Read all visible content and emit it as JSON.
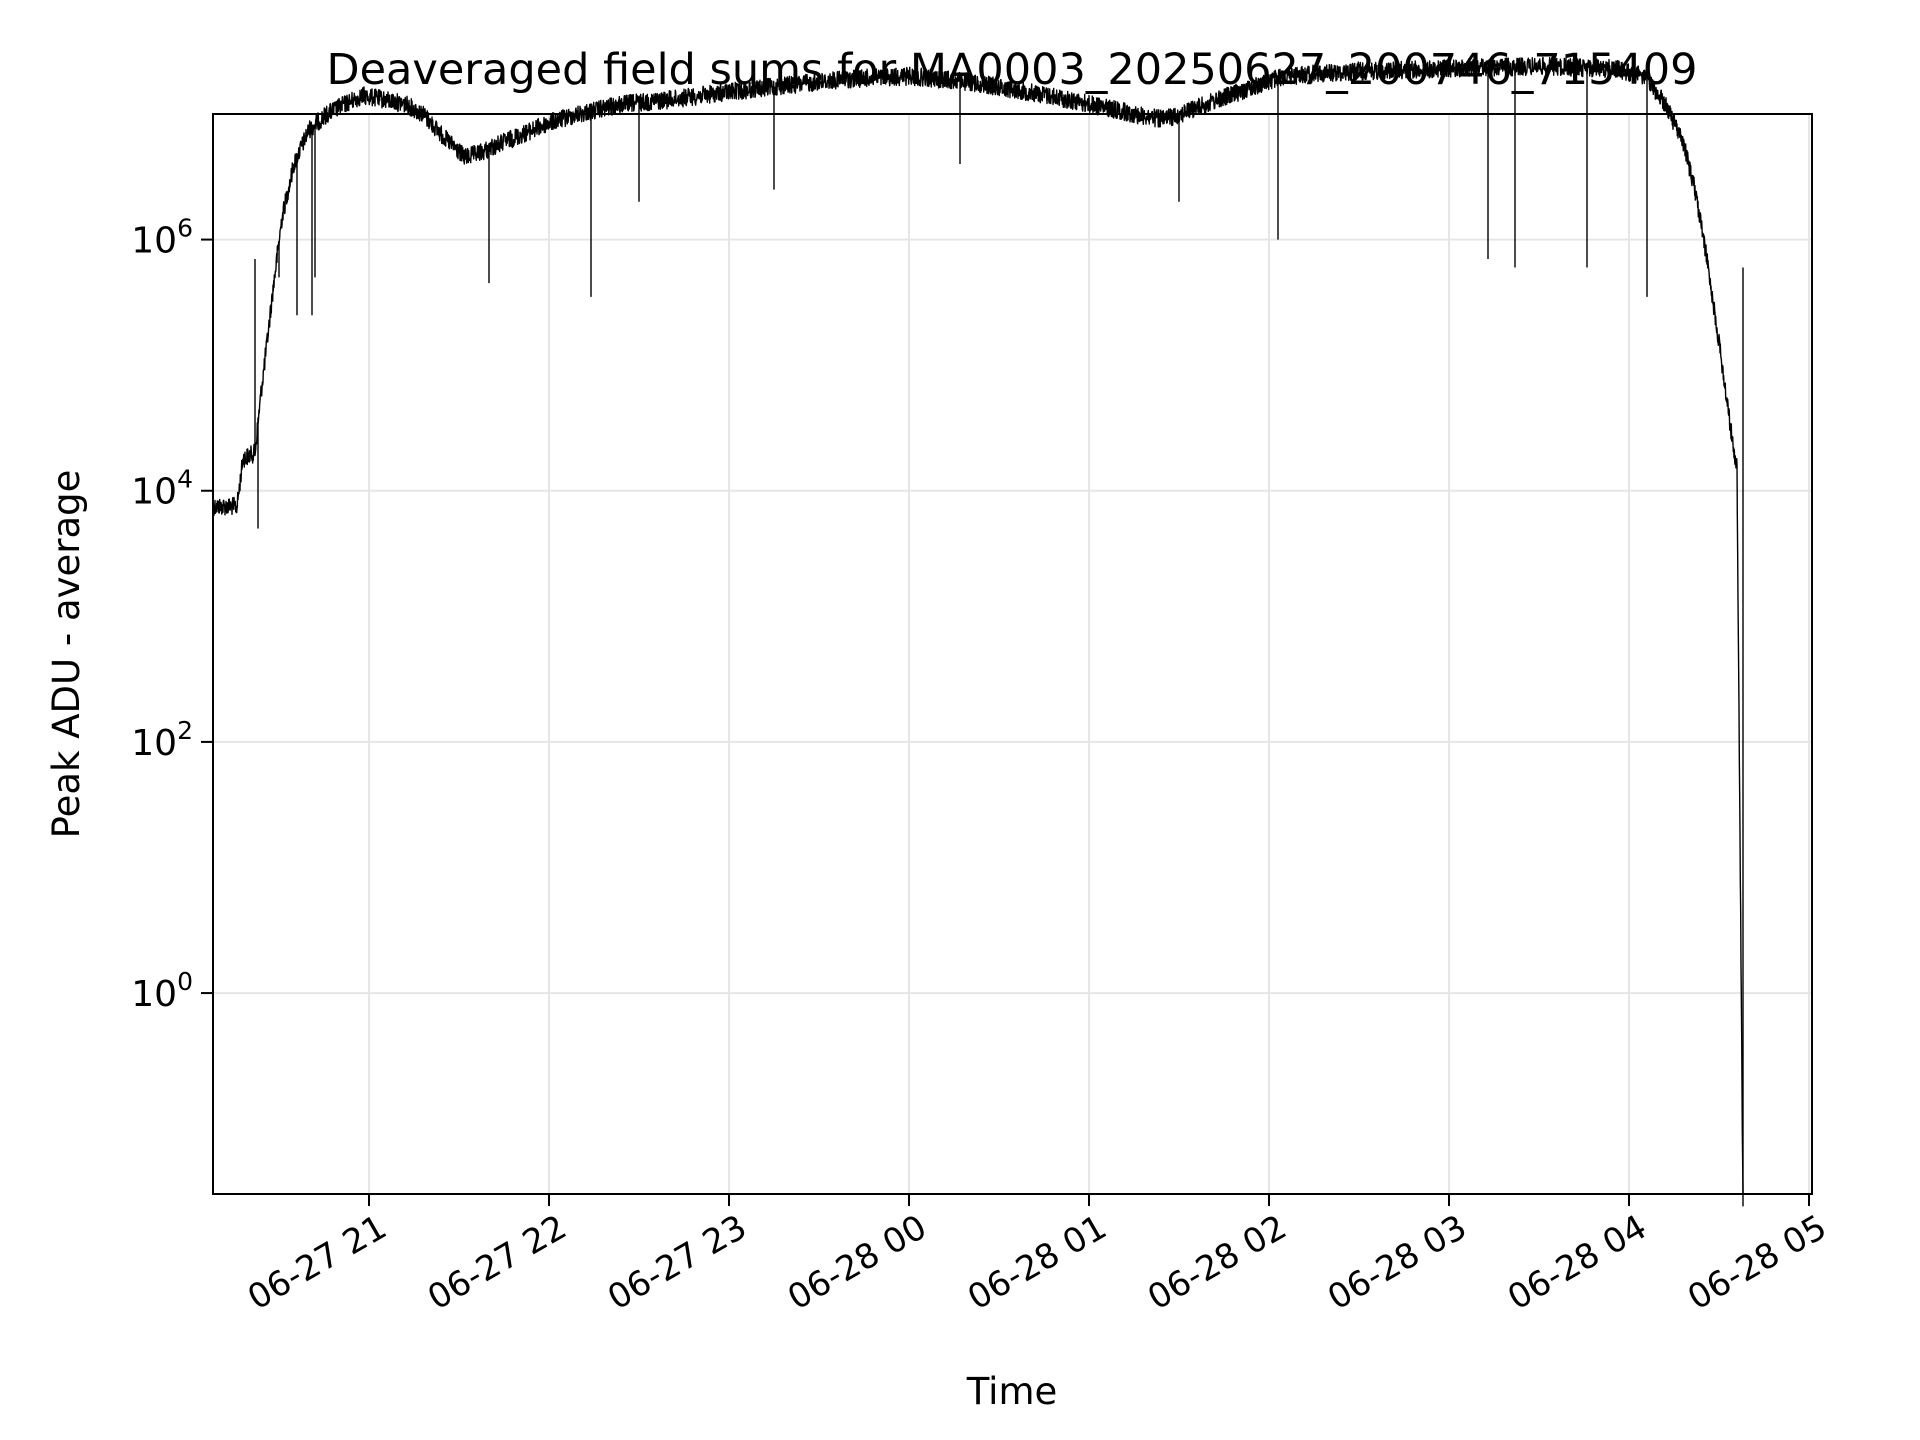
{
  "chart_data": {
    "type": "line",
    "title": "Deaveraged field sums for MA0003_20250627_200746_715409",
    "xlabel": "Time",
    "ylabel": "Peak ADU - average",
    "yscale": "log",
    "xlim": [
      "06-27 20:08",
      "06-28 05:01"
    ],
    "ylim_exponent": [
      -1.6,
      7.0
    ],
    "grid": true,
    "line_color": "#000000",
    "grid_color": "#e6e6e6",
    "x_ticks": [
      {
        "t": "06-27 21:00",
        "label": "06-27 21"
      },
      {
        "t": "06-27 22:00",
        "label": "06-27 22"
      },
      {
        "t": "06-27 23:00",
        "label": "06-27 23"
      },
      {
        "t": "06-28 00:00",
        "label": "06-28 00"
      },
      {
        "t": "06-28 01:00",
        "label": "06-28 01"
      },
      {
        "t": "06-28 02:00",
        "label": "06-28 02"
      },
      {
        "t": "06-28 03:00",
        "label": "06-28 03"
      },
      {
        "t": "06-28 04:00",
        "label": "06-28 04"
      },
      {
        "t": "06-28 05:00",
        "label": "06-28 05"
      }
    ],
    "y_ticks": [
      {
        "exp": 0,
        "base": "10",
        "sup": "0"
      },
      {
        "exp": 2,
        "base": "10",
        "sup": "2"
      },
      {
        "exp": 4,
        "base": "10",
        "sup": "4"
      },
      {
        "exp": 6,
        "base": "10",
        "sup": "6"
      }
    ],
    "series": [
      {
        "values": [
          [
            "06-27 20:08",
            7500
          ],
          [
            "06-27 20:16",
            7500
          ],
          [
            "06-27 20:18",
            18000
          ],
          [
            "06-27 20:22",
            20000
          ],
          [
            "06-27 20:24",
            60000
          ],
          [
            "06-27 20:26",
            150000
          ],
          [
            "06-27 20:28",
            400000
          ],
          [
            "06-27 20:31",
            1500000
          ],
          [
            "06-27 20:35",
            4000000
          ],
          [
            "06-27 20:40",
            7500000
          ],
          [
            "06-27 20:46",
            10000000
          ],
          [
            "06-27 20:52",
            12000000
          ],
          [
            "06-27 20:58",
            14000000
          ],
          [
            "06-27 21:05",
            13000000
          ],
          [
            "06-27 21:12",
            12000000
          ],
          [
            "06-27 21:18",
            10000000
          ],
          [
            "06-27 21:25",
            6500000
          ],
          [
            "06-27 21:32",
            4500000
          ],
          [
            "06-27 21:38",
            5000000
          ],
          [
            "06-27 21:45",
            6000000
          ],
          [
            "06-27 21:52",
            7000000
          ],
          [
            "06-27 22:00",
            8500000
          ],
          [
            "06-27 22:10",
            10000000
          ],
          [
            "06-27 22:25",
            12000000
          ],
          [
            "06-27 22:40",
            13000000
          ],
          [
            "06-27 23:00",
            15000000
          ],
          [
            "06-27 23:20",
            17000000
          ],
          [
            "06-27 23:40",
            19000000
          ],
          [
            "06-28 00:00",
            20000000
          ],
          [
            "06-28 00:20",
            18000000
          ],
          [
            "06-28 00:40",
            15000000
          ],
          [
            "06-28 01:00",
            12000000
          ],
          [
            "06-28 01:15",
            10000000
          ],
          [
            "06-28 01:25",
            9000000
          ],
          [
            "06-28 01:35",
            11000000
          ],
          [
            "06-28 01:50",
            15000000
          ],
          [
            "06-28 02:05",
            20000000
          ],
          [
            "06-28 02:30",
            22000000
          ],
          [
            "06-28 03:00",
            23000000
          ],
          [
            "06-28 03:30",
            24000000
          ],
          [
            "06-28 03:55",
            23000000
          ],
          [
            "06-28 04:05",
            20000000
          ],
          [
            "06-28 04:12",
            12000000
          ],
          [
            "06-28 04:18",
            6000000
          ],
          [
            "06-28 04:22",
            2500000
          ],
          [
            "06-28 04:26",
            700000
          ],
          [
            "06-28 04:30",
            150000
          ],
          [
            "06-28 04:34",
            30000
          ],
          [
            "06-28 04:36",
            15000
          ],
          [
            "06-28 04:38",
            0.02
          ]
        ],
        "dips": [
          [
            "06-27 20:23",
            5000
          ],
          [
            "06-27 20:22",
            700000
          ],
          [
            "06-27 20:30",
            500000
          ],
          [
            "06-27 20:36",
            250000
          ],
          [
            "06-27 20:41",
            250000
          ],
          [
            "06-27 20:42",
            500000
          ],
          [
            "06-27 21:40",
            450000
          ],
          [
            "06-27 22:14",
            350000
          ],
          [
            "06-27 22:30",
            2000000
          ],
          [
            "06-27 23:15",
            2500000
          ],
          [
            "06-28 00:17",
            4000000
          ],
          [
            "06-28 01:30",
            2000000
          ],
          [
            "06-28 02:03",
            1000000
          ],
          [
            "06-28 03:13",
            700000
          ],
          [
            "06-28 03:22",
            600000
          ],
          [
            "06-28 03:46",
            600000
          ],
          [
            "06-28 04:06",
            350000
          ],
          [
            "06-28 04:38",
            600000
          ]
        ]
      }
    ]
  }
}
